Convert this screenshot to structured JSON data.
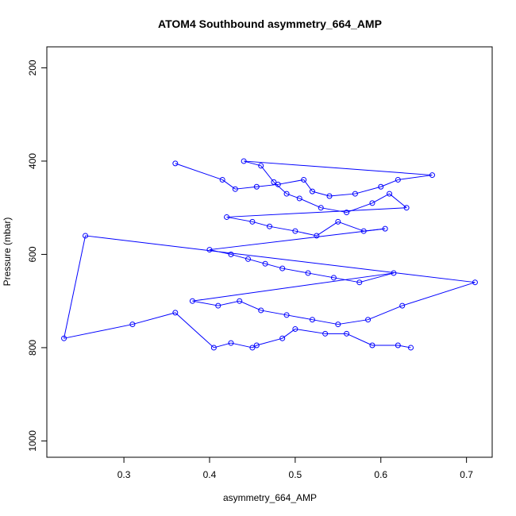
{
  "chart_data": {
    "type": "line",
    "title": "ATOM4 Southbound asymmetry_664_AMP",
    "xlabel": "asymmetry_664_AMP",
    "ylabel": "Pressure (mbar)",
    "xlim": [
      0.21,
      0.73
    ],
    "ylim": [
      1035,
      155
    ],
    "y_inverted": true,
    "x_ticks": [
      0.3,
      0.4,
      0.5,
      0.6,
      0.7
    ],
    "x_tick_labels": [
      "0.3",
      "0.4",
      "0.5",
      "0.6",
      "0.7"
    ],
    "y_ticks": [
      200,
      400,
      600,
      800,
      1000
    ],
    "y_tick_labels": [
      "200",
      "400",
      "600",
      "800",
      "1000"
    ],
    "grid": false,
    "series": [
      {
        "color": "#0000ff",
        "markers": "open-circle",
        "x": [
          0.36,
          0.415,
          0.43,
          0.455,
          0.48,
          0.51,
          0.52,
          0.54,
          0.57,
          0.6,
          0.62,
          0.66,
          0.44,
          0.46,
          0.475,
          0.49,
          0.505,
          0.53,
          0.56,
          0.59,
          0.61,
          0.63,
          0.42,
          0.45,
          0.47,
          0.5,
          0.525,
          0.55,
          0.58,
          0.605,
          0.4,
          0.425,
          0.445,
          0.465,
          0.485,
          0.515,
          0.545,
          0.575,
          0.615,
          0.38,
          0.41,
          0.435,
          0.46,
          0.49,
          0.52,
          0.55,
          0.585,
          0.625,
          0.71,
          0.255,
          0.23,
          0.31,
          0.36,
          0.405,
          0.425,
          0.45,
          0.455,
          0.485,
          0.5,
          0.535,
          0.56,
          0.59,
          0.62,
          0.635
        ],
        "y": [
          405,
          440,
          460,
          455,
          450,
          440,
          465,
          475,
          470,
          455,
          440,
          430,
          400,
          410,
          445,
          470,
          480,
          500,
          510,
          490,
          470,
          500,
          520,
          530,
          540,
          550,
          560,
          530,
          550,
          545,
          590,
          600,
          610,
          620,
          630,
          640,
          650,
          660,
          640,
          700,
          710,
          700,
          720,
          730,
          740,
          750,
          740,
          710,
          660,
          560,
          780,
          750,
          725,
          800,
          790,
          800,
          795,
          780,
          760,
          770,
          770,
          795,
          795,
          800
        ]
      }
    ]
  }
}
